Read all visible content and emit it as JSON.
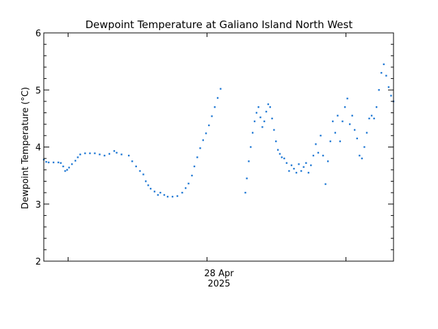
{
  "chart_data": {
    "type": "scatter",
    "title": "Dewpoint Temperature at Galiano Island North West",
    "ylabel": "Dewpoint Temperature (°C)",
    "xlabel": "",
    "x_unit": "hours",
    "x_range": [
      0,
      72
    ],
    "ylim": [
      2,
      6
    ],
    "yticks": [
      2,
      3,
      4,
      5,
      6
    ],
    "xticks_major": [
      {
        "x": 33.6,
        "label_line1": "28 Apr",
        "label_line2": "2025"
      }
    ],
    "xticks_minor": [
      5.0,
      33.6,
      62.2
    ],
    "grid": false,
    "series": [
      {
        "color": "#1f78d4",
        "points": [
          [
            0.0,
            3.78
          ],
          [
            0.5,
            3.74
          ],
          [
            1.0,
            3.73
          ],
          [
            2.0,
            3.73
          ],
          [
            3.0,
            3.73
          ],
          [
            3.5,
            3.72
          ],
          [
            4.0,
            3.66
          ],
          [
            4.4,
            3.58
          ],
          [
            4.8,
            3.6
          ],
          [
            5.2,
            3.64
          ],
          [
            5.8,
            3.7
          ],
          [
            6.5,
            3.76
          ],
          [
            7.0,
            3.82
          ],
          [
            7.5,
            3.87
          ],
          [
            8.5,
            3.89
          ],
          [
            9.5,
            3.89
          ],
          [
            10.5,
            3.89
          ],
          [
            11.5,
            3.87
          ],
          [
            12.5,
            3.85
          ],
          [
            13.5,
            3.88
          ],
          [
            14.5,
            3.93
          ],
          [
            15.0,
            3.9
          ],
          [
            16.0,
            3.87
          ],
          [
            17.5,
            3.85
          ],
          [
            18.2,
            3.75
          ],
          [
            19.0,
            3.66
          ],
          [
            19.8,
            3.58
          ],
          [
            20.5,
            3.52
          ],
          [
            21.0,
            3.4
          ],
          [
            21.5,
            3.33
          ],
          [
            22.0,
            3.27
          ],
          [
            22.8,
            3.22
          ],
          [
            23.5,
            3.16
          ],
          [
            24.0,
            3.2
          ],
          [
            24.8,
            3.16
          ],
          [
            25.5,
            3.13
          ],
          [
            26.5,
            3.13
          ],
          [
            27.5,
            3.14
          ],
          [
            28.5,
            3.2
          ],
          [
            29.2,
            3.28
          ],
          [
            29.8,
            3.36
          ],
          [
            30.5,
            3.5
          ],
          [
            31.0,
            3.66
          ],
          [
            31.6,
            3.82
          ],
          [
            32.2,
            3.98
          ],
          [
            32.8,
            4.12
          ],
          [
            33.4,
            4.24
          ],
          [
            34.0,
            4.38
          ],
          [
            34.6,
            4.54
          ],
          [
            35.2,
            4.7
          ],
          [
            35.8,
            4.86
          ],
          [
            36.4,
            5.02
          ],
          [
            41.5,
            3.2
          ],
          [
            41.8,
            3.45
          ],
          [
            42.2,
            3.75
          ],
          [
            42.6,
            4.0
          ],
          [
            43.0,
            4.25
          ],
          [
            43.4,
            4.45
          ],
          [
            43.8,
            4.6
          ],
          [
            44.2,
            4.7
          ],
          [
            44.6,
            4.52
          ],
          [
            45.0,
            4.35
          ],
          [
            45.4,
            4.45
          ],
          [
            45.8,
            4.62
          ],
          [
            46.2,
            4.75
          ],
          [
            46.6,
            4.7
          ],
          [
            47.0,
            4.5
          ],
          [
            47.4,
            4.3
          ],
          [
            47.8,
            4.1
          ],
          [
            48.2,
            3.95
          ],
          [
            48.6,
            3.88
          ],
          [
            49.0,
            3.82
          ],
          [
            49.5,
            3.8
          ],
          [
            50.0,
            3.72
          ],
          [
            50.5,
            3.58
          ],
          [
            51.0,
            3.68
          ],
          [
            51.5,
            3.62
          ],
          [
            52.0,
            3.55
          ],
          [
            52.5,
            3.7
          ],
          [
            53.0,
            3.58
          ],
          [
            53.5,
            3.65
          ],
          [
            54.0,
            3.72
          ],
          [
            54.5,
            3.55
          ],
          [
            55.0,
            3.68
          ],
          [
            55.5,
            3.85
          ],
          [
            56.0,
            4.05
          ],
          [
            56.5,
            3.9
          ],
          [
            57.0,
            4.2
          ],
          [
            57.5,
            3.85
          ],
          [
            58.0,
            3.35
          ],
          [
            58.5,
            3.75
          ],
          [
            59.0,
            4.1
          ],
          [
            59.5,
            4.45
          ],
          [
            60.0,
            4.25
          ],
          [
            60.5,
            4.55
          ],
          [
            61.0,
            4.1
          ],
          [
            61.5,
            4.45
          ],
          [
            62.0,
            4.7
          ],
          [
            62.5,
            4.85
          ],
          [
            63.0,
            4.4
          ],
          [
            63.5,
            4.55
          ],
          [
            64.0,
            4.3
          ],
          [
            64.5,
            4.15
          ],
          [
            65.0,
            3.85
          ],
          [
            65.5,
            3.8
          ],
          [
            66.0,
            4.0
          ],
          [
            66.5,
            4.25
          ],
          [
            67.0,
            4.5
          ],
          [
            67.5,
            4.55
          ],
          [
            68.0,
            4.5
          ],
          [
            68.5,
            4.7
          ],
          [
            69.0,
            5.0
          ],
          [
            69.5,
            5.3
          ],
          [
            70.0,
            5.45
          ],
          [
            70.5,
            5.25
          ],
          [
            71.0,
            5.05
          ],
          [
            71.5,
            4.9
          ],
          [
            72.0,
            4.8
          ]
        ]
      }
    ]
  }
}
